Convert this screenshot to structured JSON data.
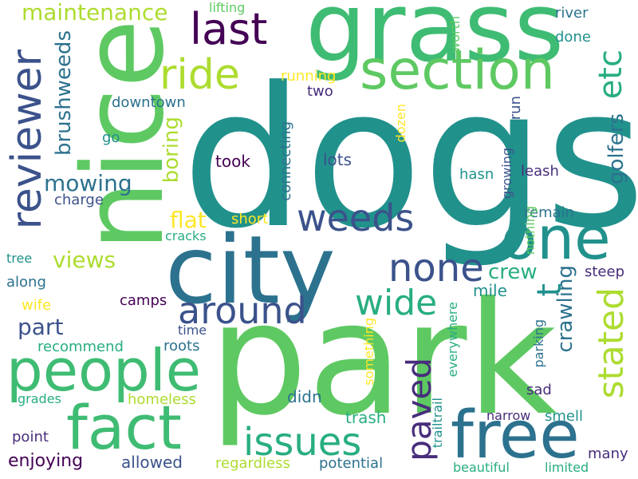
{
  "palette": {
    "background": "#ffffff",
    "dark_purple": "#440154",
    "indigo": "#472d7b",
    "blue": "#3b528b",
    "steel_blue": "#2c728e",
    "teal": "#21918c",
    "sea_green": "#28ae80",
    "green": "#5ec962",
    "lime": "#addc30",
    "yellow": "#fde725"
  },
  "words": {
    "dogs": "dogs",
    "park": "park",
    "nice": "nice",
    "grass": "grass",
    "city": "city",
    "section": "section",
    "free": "free",
    "fact": "fact",
    "people": "people",
    "one": "one",
    "reviewer": "reviewer",
    "last": "last",
    "ride": "ride",
    "weeds": "weeds",
    "issues": "issues",
    "none": "none",
    "around": "around",
    "wide": "wide",
    "stated": "stated",
    "paved": "paved",
    "etc": "etc",
    "maintenance": "maintenance",
    "brushweeds": "brushweeds",
    "mowing": "mowing",
    "views": "views",
    "boring": "boring",
    "flat": "flat",
    "golfers": "golfers",
    "crawling": "crawling",
    "crew": "crew",
    "part": "part",
    "t": "t",
    "lifting": "lifting",
    "river": "river",
    "done": "done",
    "running": "running",
    "two": "two",
    "worth": "worth",
    "downtown": "downtown",
    "go": "go",
    "took": "took",
    "lots": "lots",
    "connecting": "connecting",
    "dozen": "dozen",
    "run": "run",
    "hasn": "hasn",
    "growing": "growing",
    "leash": "leash",
    "charge": "charge",
    "short": "short",
    "remain": "remain",
    "cracks": "cracks",
    "nothing": "nothing",
    "tree": "tree",
    "along": "along",
    "mile": "mile",
    "steep": "steep",
    "wife": "wife",
    "camps": "camps",
    "time": "time",
    "recommend": "recommend",
    "roots": "roots",
    "something": "something",
    "everywhere": "everywhere",
    "parking": "parking",
    "grades": "grades",
    "homeless": "homeless",
    "didn": "didn",
    "trash": "trash",
    "sad": "sad",
    "narrow": "narrow",
    "smell": "smell",
    "point": "point",
    "trailtrail": "trailtrail",
    "enjoying": "enjoying",
    "allowed": "allowed",
    "regardless": "regardless",
    "potential": "potential",
    "beautiful": "beautiful",
    "limited": "limited",
    "many": "many"
  }
}
